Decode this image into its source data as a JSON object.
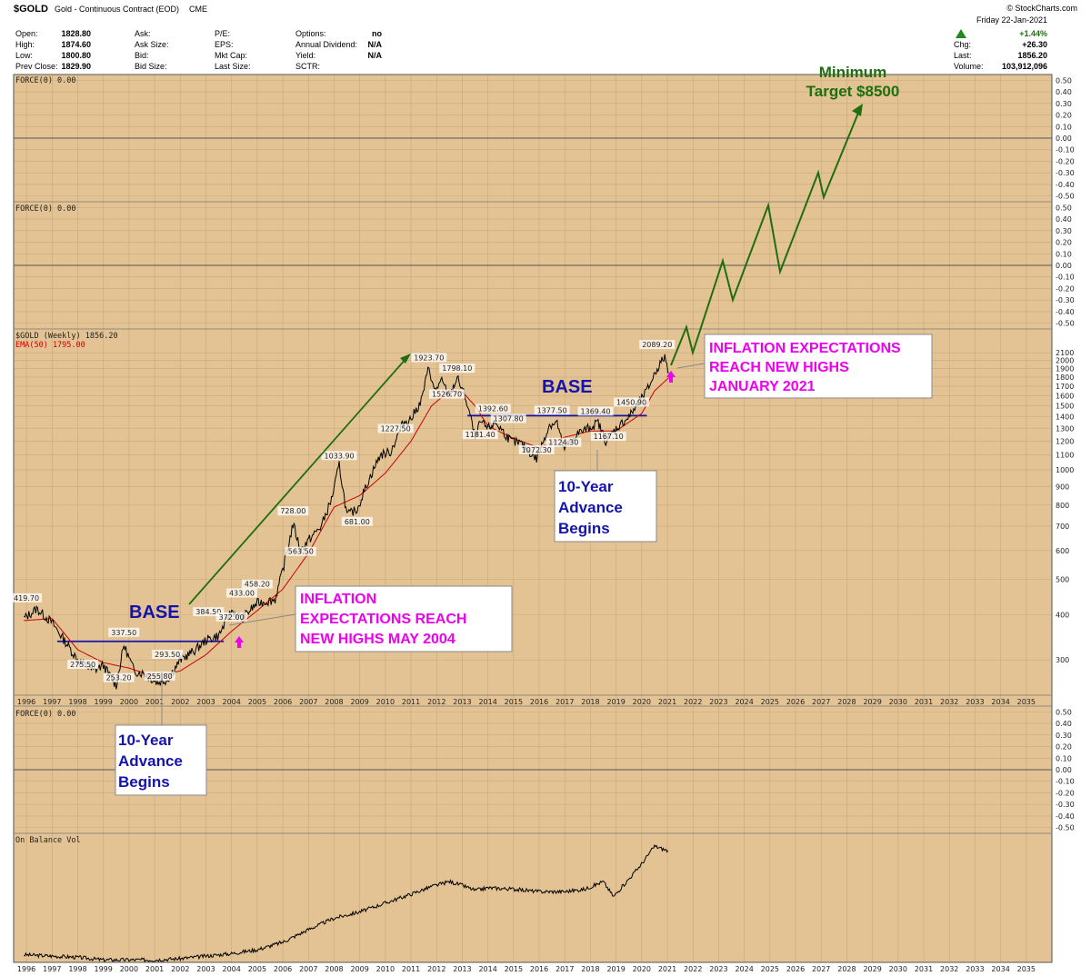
{
  "header": {
    "symbol": "$GOLD",
    "description": "Gold - Continuous Contract (EOD)",
    "exchange": "CME",
    "watermark": "© StockCharts.com",
    "date": "Friday  22-Jan-2021",
    "fields": [
      {
        "label": "Open:",
        "value": "1828.80"
      },
      {
        "label": "High:",
        "value": "1874.60"
      },
      {
        "label": "Low:",
        "value": "1800.80"
      },
      {
        "label": "Prev Close:",
        "value": "1829.90"
      },
      {
        "label": "Ask:",
        "value": ""
      },
      {
        "label": "Ask Size:",
        "value": ""
      },
      {
        "label": "Bid:",
        "value": ""
      },
      {
        "label": "Bid Size:",
        "value": ""
      },
      {
        "label": "P/E:",
        "value": ""
      },
      {
        "label": "EPS:",
        "value": ""
      },
      {
        "label": "Mkt Cap:",
        "value": ""
      },
      {
        "label": "Last Size:",
        "value": ""
      },
      {
        "label": "Options:",
        "value": "no"
      },
      {
        "label": "Annual Dividend:",
        "value": "N/A"
      },
      {
        "label": "Yield:",
        "value": "N/A"
      },
      {
        "label": "SCTR:",
        "value": ""
      }
    ],
    "change_pct": "+1.44%",
    "chg_label": "Chg:",
    "chg": "+26.30",
    "last_label": "Last:",
    "last": "1856.20",
    "volume_label": "Volume:",
    "volume": "103,912,096"
  },
  "colors": {
    "background": "#e3c393",
    "price": "#000000",
    "ema": "#cc0000",
    "projection": "#1f6e0f",
    "base_line": "#1414aa",
    "magenta": "#ee00ee",
    "blue_text": "#1414aa",
    "green_text": "#1f6e0f"
  },
  "chart_data": [
    {
      "type": "line",
      "title": "FORCE(0) 0.00",
      "ylim": [
        -0.55,
        0.55
      ],
      "y_ticks": [
        "0.50",
        "0.40",
        "0.30",
        "0.20",
        "0.10",
        "0.00",
        "-0.10",
        "-0.20",
        "-0.30",
        "-0.40",
        "-0.50"
      ],
      "series": [
        {
          "name": "FORCE(0) 0.00",
          "values": [
            0
          ]
        }
      ]
    },
    {
      "type": "line",
      "title": "FORCE(0) 0.00",
      "ylim": [
        -0.55,
        0.55
      ],
      "y_ticks": [
        "0.50",
        "0.40",
        "0.30",
        "0.20",
        "0.10",
        "0.00",
        "-0.10",
        "-0.20",
        "-0.30",
        "-0.40",
        "-0.50"
      ],
      "series": [
        {
          "name": "FORCE(0) 0.00",
          "values": [
            0
          ]
        }
      ]
    },
    {
      "type": "line",
      "title": "$GOLD (Weekly) 1856.20",
      "scale": "log",
      "ylim": [
        240,
        2400
      ],
      "y_ticks": [
        "2100",
        "2000",
        "1900",
        "1800",
        "1700",
        "1600",
        "1500",
        "1400",
        "1300",
        "1200",
        "1100",
        "1000",
        "900",
        "800",
        "700",
        "600",
        "500",
        "400",
        "300"
      ],
      "x_ticks": [
        "1996",
        "1997",
        "1998",
        "1999",
        "2000",
        "2001",
        "2002",
        "2003",
        "2004",
        "2005",
        "2006",
        "2007",
        "2008",
        "2009",
        "2010",
        "2011",
        "2012",
        "2013",
        "2014",
        "2015",
        "2016",
        "2017",
        "2018",
        "2019",
        "2020",
        "2021",
        "2022",
        "2023",
        "2024",
        "2025",
        "2026",
        "2027",
        "2028",
        "2029",
        "2030",
        "2031",
        "2032",
        "2033",
        "2034",
        "2035"
      ],
      "series": [
        {
          "name": "$GOLD (Weekly) 1856.20",
          "x": [
            1995.9,
            1996.4,
            1997.0,
            1997.6,
            1998.0,
            1998.6,
            1999.0,
            1999.5,
            1999.8,
            2000.2,
            2000.6,
            2001.1,
            2001.5,
            2002.0,
            2002.6,
            2003.0,
            2003.5,
            2004.0,
            2004.4,
            2005.0,
            2005.7,
            2006.0,
            2006.4,
            2006.7,
            2007.0,
            2007.5,
            2007.9,
            2008.2,
            2008.5,
            2008.9,
            2009.3,
            2009.8,
            2010.2,
            2010.7,
            2011.0,
            2011.4,
            2011.7,
            2011.9,
            2012.2,
            2012.5,
            2012.8,
            2013.1,
            2013.3,
            2013.5,
            2013.7,
            2014.0,
            2014.3,
            2014.9,
            2015.3,
            2015.9,
            2016.4,
            2016.7,
            2016.95,
            2017.5,
            2017.9,
            2018.3,
            2018.6,
            2019.0,
            2019.5,
            2019.8,
            2020.2,
            2020.6,
            2020.9,
            2021.06
          ],
          "values": [
            390,
            415,
            380,
            330,
            300,
            280,
            290,
            255,
            330,
            280,
            275,
            260,
            265,
            300,
            320,
            340,
            350,
            410,
            390,
            430,
            440,
            530,
            710,
            600,
            640,
            700,
            830,
            1033,
            750,
            780,
            920,
            1100,
            1120,
            1350,
            1380,
            1550,
            1923,
            1650,
            1750,
            1600,
            1790,
            1600,
            1420,
            1220,
            1350,
            1300,
            1350,
            1200,
            1180,
            1072,
            1330,
            1350,
            1140,
            1260,
            1300,
            1350,
            1200,
            1300,
            1400,
            1500,
            1650,
            1900,
            2050,
            1856
          ]
        },
        {
          "name": "EMA(50) 1795.00",
          "x": [
            1995.9,
            1997.0,
            1998.0,
            1999.0,
            2000.0,
            2001.0,
            2002.0,
            2003.0,
            2004.0,
            2005.0,
            2006.0,
            2007.0,
            2008.0,
            2009.0,
            2010.0,
            2011.0,
            2011.8,
            2012.5,
            2013.0,
            2013.5,
            2014.0,
            2015.0,
            2016.0,
            2017.0,
            2018.0,
            2019.0,
            2020.0,
            2020.5,
            2021.06
          ],
          "values": [
            385,
            390,
            320,
            295,
            285,
            270,
            280,
            310,
            360,
            410,
            470,
            590,
            790,
            850,
            980,
            1200,
            1500,
            1650,
            1640,
            1500,
            1320,
            1220,
            1150,
            1230,
            1280,
            1280,
            1430,
            1650,
            1795
          ]
        }
      ],
      "annotations": [
        {
          "text": "419.70",
          "x": 1996.0,
          "y": 419.7
        },
        {
          "text": "337.50",
          "x": 1999.8,
          "y": 337.5
        },
        {
          "text": "275.50",
          "x": 1998.2,
          "y": 275.5
        },
        {
          "text": "253.20",
          "x": 1999.6,
          "y": 253.2
        },
        {
          "text": "255.80",
          "x": 2001.2,
          "y": 255.8
        },
        {
          "text": "293.50",
          "x": 2001.5,
          "y": 293.5
        },
        {
          "text": "384.50",
          "x": 2003.1,
          "y": 384.5
        },
        {
          "text": "372.00",
          "x": 2004.0,
          "y": 372.0
        },
        {
          "text": "433.00",
          "x": 2004.4,
          "y": 433.0
        },
        {
          "text": "458.20",
          "x": 2005.0,
          "y": 458.2
        },
        {
          "text": "728.00",
          "x": 2006.4,
          "y": 728.0
        },
        {
          "text": "563.50",
          "x": 2006.7,
          "y": 563.5
        },
        {
          "text": "1033.90",
          "x": 2008.2,
          "y": 1033.9
        },
        {
          "text": "681.00",
          "x": 2008.9,
          "y": 681.0
        },
        {
          "text": "1227.50",
          "x": 2010.4,
          "y": 1227.5
        },
        {
          "text": "1923.70",
          "x": 2011.7,
          "y": 1923.7
        },
        {
          "text": "1798.10",
          "x": 2012.8,
          "y": 1798.1
        },
        {
          "text": "1526.70",
          "x": 2012.4,
          "y": 1526.7
        },
        {
          "text": "1392.60",
          "x": 2014.2,
          "y": 1392.6
        },
        {
          "text": "1307.80",
          "x": 2014.8,
          "y": 1307.8
        },
        {
          "text": "1181.40",
          "x": 2013.7,
          "y": 1181.4
        },
        {
          "text": "1072.30",
          "x": 2015.9,
          "y": 1072.3
        },
        {
          "text": "1377.50",
          "x": 2016.5,
          "y": 1377.5
        },
        {
          "text": "1124.30",
          "x": 2016.95,
          "y": 1124.3
        },
        {
          "text": "1369.40",
          "x": 2018.2,
          "y": 1369.4
        },
        {
          "text": "1167.10",
          "x": 2018.7,
          "y": 1167.1
        },
        {
          "text": "1450.90",
          "x": 2019.6,
          "y": 1450.9
        },
        {
          "text": "2089.20",
          "x": 2020.6,
          "y": 2089.2
        }
      ],
      "base_lines": [
        {
          "x": [
            1997.2,
            2003.7
          ],
          "y": 337.5
        },
        {
          "x": [
            2013.2,
            2020.2
          ],
          "y": 1410
        }
      ]
    },
    {
      "type": "line",
      "title": "FORCE(0) 0.00",
      "ylim": [
        -0.55,
        0.55
      ],
      "y_ticks": [
        "0.50",
        "0.40",
        "0.30",
        "0.20",
        "0.10",
        "0.00",
        "-0.10",
        "-0.20",
        "-0.30",
        "-0.40",
        "-0.50"
      ],
      "series": [
        {
          "name": "FORCE(0) 0.00",
          "values": [
            0
          ]
        }
      ]
    },
    {
      "type": "line",
      "title": "On Balance Vol",
      "x_ticks": [
        "1996",
        "1997",
        "1998",
        "1999",
        "2000",
        "2001",
        "2002",
        "2003",
        "2004",
        "2005",
        "2006",
        "2007",
        "2008",
        "2009",
        "2010",
        "2011",
        "2012",
        "2013",
        "2014",
        "2015",
        "2016",
        "2017",
        "2018",
        "2019",
        "2020",
        "2021",
        "2022",
        "2023",
        "2024",
        "2025",
        "2026",
        "2027",
        "2028",
        "2029",
        "2030",
        "2031",
        "2032",
        "2033",
        "2034",
        "2035"
      ],
      "series": [
        {
          "name": "On Balance Vol",
          "x": [
            1995.9,
            1997.0,
            1998.0,
            1999.0,
            2000.0,
            2001.0,
            2002.0,
            2003.0,
            2004.0,
            2005.0,
            2006.0,
            2007.0,
            2008.0,
            2009.0,
            2010.0,
            2011.0,
            2011.8,
            2012.5,
            2013.0,
            2013.5,
            2014.0,
            2015.0,
            2016.0,
            2017.0,
            2017.8,
            2018.5,
            2018.9,
            2019.5,
            2020.0,
            2020.5,
            2021.06
          ],
          "values": [
            0.06,
            0.05,
            0.04,
            0.02,
            0.02,
            0.02,
            0.03,
            0.05,
            0.07,
            0.1,
            0.16,
            0.26,
            0.35,
            0.4,
            0.47,
            0.54,
            0.6,
            0.64,
            0.61,
            0.57,
            0.59,
            0.58,
            0.56,
            0.56,
            0.58,
            0.64,
            0.52,
            0.66,
            0.78,
            0.92,
            0.88
          ]
        }
      ]
    }
  ],
  "projection": {
    "title_line1": "Minimum",
    "title_line2": "Target $8500"
  },
  "annotations_text": {
    "base_left": "BASE",
    "base_right": "BASE",
    "inflation_2004_l1": "INFLATION",
    "inflation_2004_l2": "EXPECTATIONS REACH",
    "inflation_2004_l3": "NEW HIGHS MAY 2004",
    "inflation_2021_l1": "INFLATION EXPECTATIONS",
    "inflation_2021_l2": "REACH NEW HIGHS",
    "inflation_2021_l3": "JANUARY 2021",
    "advance_1_l1": "10-Year",
    "advance_1_l2": "Advance",
    "advance_1_l3": "Begins",
    "advance_2_l1": "10-Year",
    "advance_2_l2": "Advance",
    "advance_2_l3": "Begins"
  }
}
